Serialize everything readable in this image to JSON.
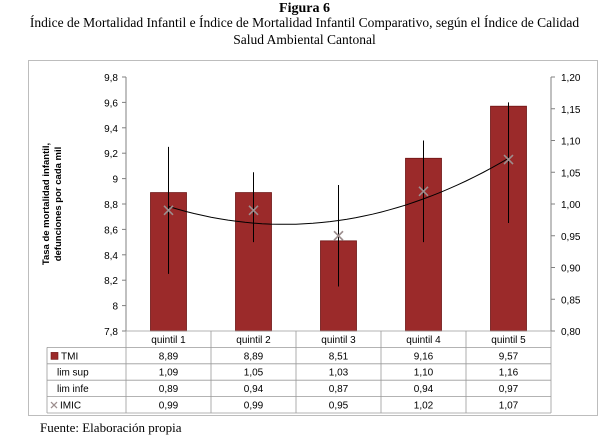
{
  "figure_label": "Figura 6",
  "figure_title": "Índice de Mortalidad Infantil e Índice de Mortalidad Infantil Comparativo, según el Índice de Calidad Salud Ambiental Cantonal",
  "source": "Fuente: Elaboración propia",
  "colors": {
    "bar": "#9b2a2a",
    "bar_dark": "#6e1515",
    "error": "#000000",
    "imic_marker": "#9d8f8f",
    "trend": "#000000",
    "grid": "#c0c0c0"
  },
  "chart_data": {
    "type": "bar",
    "categories": [
      "quintil 1",
      "quintil 2",
      "quintil 3",
      "quintil 4",
      "quintil 5"
    ],
    "ylabel": "Tasa de mortalidad infantil, defunciones por cada mil",
    "ylim": [
      7.8,
      9.8
    ],
    "yticks": [
      "7,8",
      "8",
      "8,2",
      "8,4",
      "8,6",
      "8,8",
      "9",
      "9,2",
      "9,4",
      "9,6",
      "9,8"
    ],
    "y2lim": [
      0.8,
      1.2
    ],
    "y2ticks": [
      "0,80",
      "0,85",
      "0,90",
      "0,95",
      "1,00",
      "1,05",
      "1,10",
      "1,15",
      "1,20"
    ],
    "grid": false,
    "series": [
      {
        "name": "TMI",
        "axis": "left",
        "kind": "bar",
        "values": [
          8.89,
          8.89,
          8.51,
          9.16,
          9.57
        ],
        "labels": [
          "8,89",
          "8,89",
          "8,51",
          "9,16",
          "9,57"
        ]
      },
      {
        "name": "lim sup",
        "axis": "right",
        "kind": "error-high",
        "values": [
          1.09,
          1.05,
          1.03,
          1.1,
          1.16
        ],
        "labels": [
          "1,09",
          "1,05",
          "1,03",
          "1,10",
          "1,16"
        ]
      },
      {
        "name": "lim infe",
        "axis": "right",
        "kind": "error-low",
        "values": [
          0.89,
          0.94,
          0.87,
          0.94,
          0.97
        ],
        "labels": [
          "0,89",
          "0,94",
          "0,87",
          "0,94",
          "0,97"
        ]
      },
      {
        "name": "IMIC",
        "axis": "right",
        "kind": "marker",
        "values": [
          0.99,
          0.99,
          0.95,
          1.02,
          1.07
        ],
        "labels": [
          "0,99",
          "0,99",
          "0,95",
          "1,02",
          "1,07"
        ]
      }
    ],
    "trendline": "polynomial"
  }
}
